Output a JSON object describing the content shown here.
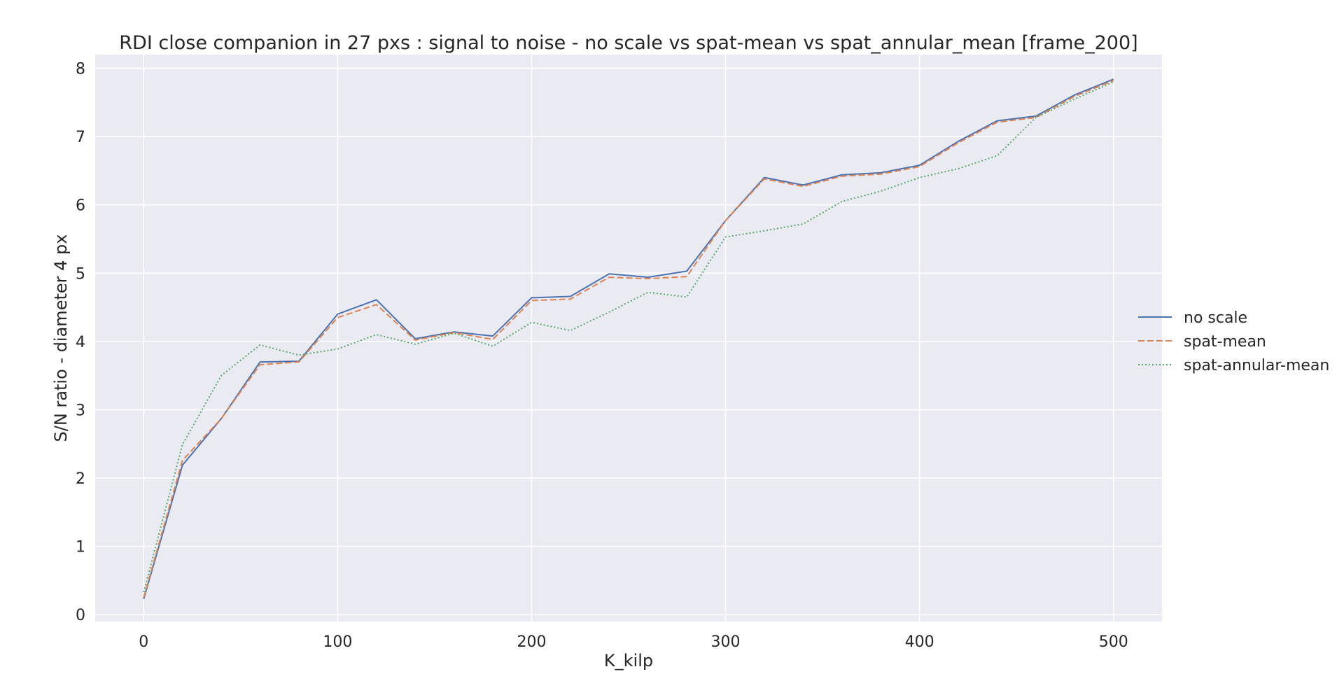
{
  "chart_data": {
    "type": "line",
    "title": "RDI close companion in 27 pxs : signal to noise - no scale vs spat-mean vs spat_annular_mean [frame_200]",
    "xlabel": "K_kilp",
    "ylabel": "S/N ratio - diameter 4 px",
    "xlim": [
      -25,
      525
    ],
    "ylim": [
      -0.1,
      8.2
    ],
    "xticks": [
      0,
      100,
      200,
      300,
      400,
      500
    ],
    "yticks": [
      0,
      1,
      2,
      3,
      4,
      5,
      6,
      7,
      8
    ],
    "grid": true,
    "legend_position": "right",
    "background": "#eaeaf2",
    "x": [
      0,
      20,
      40,
      60,
      80,
      100,
      120,
      140,
      160,
      180,
      200,
      220,
      240,
      260,
      280,
      300,
      320,
      340,
      360,
      380,
      400,
      420,
      440,
      460,
      480,
      500
    ],
    "series": [
      {
        "name": "no scale",
        "color": "#4c72b0",
        "style": "solid",
        "values": [
          0.23,
          2.19,
          2.87,
          3.7,
          3.71,
          4.4,
          4.61,
          4.04,
          4.14,
          4.08,
          4.64,
          4.66,
          4.99,
          4.94,
          5.03,
          5.77,
          6.4,
          6.29,
          6.44,
          6.47,
          6.58,
          6.93,
          7.23,
          7.3,
          7.61,
          7.84
        ]
      },
      {
        "name": "spat-mean",
        "color": "#dd8452",
        "style": "dashed",
        "values": [
          0.25,
          2.26,
          2.87,
          3.66,
          3.7,
          4.35,
          4.54,
          4.02,
          4.13,
          4.03,
          4.6,
          4.62,
          4.94,
          4.92,
          4.95,
          5.77,
          6.38,
          6.27,
          6.42,
          6.45,
          6.56,
          6.91,
          7.21,
          7.28,
          7.59,
          7.82
        ]
      },
      {
        "name": "spat-annular-mean",
        "color": "#55a868",
        "style": "dotted",
        "values": [
          0.33,
          2.49,
          3.5,
          3.95,
          3.8,
          3.89,
          4.1,
          3.96,
          4.12,
          3.93,
          4.28,
          4.16,
          4.43,
          4.72,
          4.65,
          5.53,
          5.62,
          5.72,
          6.05,
          6.2,
          6.4,
          6.53,
          6.72,
          7.28,
          7.55,
          7.8
        ]
      }
    ]
  }
}
